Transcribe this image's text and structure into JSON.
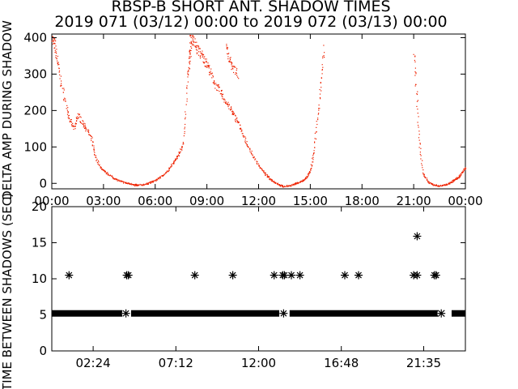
{
  "title_line1": "RBSP-B SHORT ANT. SHADOW TIMES",
  "title_line2": "2019 071 (03/12) 00:00 to 2019 072 (03/13) 00:00",
  "colors": {
    "red": "#ee2200",
    "black": "#000000"
  },
  "chart_data": [
    {
      "type": "scatter",
      "ylabel": "DELTA AMP DURING SHADOW",
      "ylim": [
        -15,
        410
      ],
      "xlim": [
        0,
        24
      ],
      "yticks": [
        0,
        100,
        200,
        300,
        400
      ],
      "xtick_labels": [
        "00:00",
        "03:00",
        "06:00",
        "09:00",
        "12:00",
        "15:00",
        "18:00",
        "21:00",
        "00:00"
      ],
      "series": [
        {
          "color": "#ee2200",
          "segments": [
            {
              "x": [
                0.0,
                0.15,
                0.3,
                0.5,
                0.8,
                1.0,
                1.3,
                1.5,
                1.8,
                2.0,
                2.3,
                2.5,
                2.8,
                3.0,
                3.3,
                3.6,
                3.9,
                4.2,
                4.5,
                4.8,
                5.0
              ],
              "y": [
                400,
                380,
                340,
                280,
                220,
                175,
                150,
                190,
                165,
                150,
                120,
                75,
                45,
                35,
                25,
                15,
                8,
                3,
                0,
                -2,
                -5
              ]
            },
            {
              "x": [
                4.8,
                5.2,
                5.5,
                5.8,
                6.1,
                6.4,
                6.7,
                7.0,
                7.2,
                7.4,
                7.6,
                7.8,
                8.0
              ],
              "y": [
                -5,
                -3,
                0,
                5,
                12,
                22,
                35,
                55,
                70,
                85,
                110,
                230,
                400
              ]
            },
            {
              "x": [
                8.0,
                8.2,
                8.4,
                8.6,
                8.8,
                9.0,
                9.2,
                9.5,
                9.8,
                10.0,
                10.3,
                10.5,
                10.8,
                11.0,
                11.3,
                11.6,
                12.0,
                12.3,
                12.6,
                12.9,
                13.2,
                13.4
              ],
              "y": [
                405,
                395,
                370,
                360,
                340,
                330,
                300,
                270,
                250,
                230,
                210,
                190,
                170,
                140,
                110,
                80,
                50,
                30,
                15,
                5,
                -3,
                -8
              ]
            },
            {
              "x": [
                13.4,
                13.8,
                14.1,
                14.4,
                14.6,
                14.8,
                15.0,
                15.2,
                15.4,
                15.6,
                15.8
              ],
              "y": [
                -8,
                -5,
                0,
                5,
                10,
                20,
                40,
                90,
                180,
                280,
                380
              ]
            },
            {
              "x": [
                21.0,
                21.15,
                21.3,
                21.5,
                21.8,
                22.1,
                22.4,
                22.7,
                23.0,
                23.2,
                23.4,
                23.6,
                23.8,
                24.0
              ],
              "y": [
                360,
                250,
                120,
                30,
                5,
                -2,
                -6,
                -5,
                0,
                5,
                12,
                18,
                32,
                45
              ]
            },
            {
              "x": [
                7.9,
                8.0,
                8.1
              ],
              "y": [
                300,
                350,
                395
              ]
            },
            {
              "x": [
                10.1,
                10.3,
                10.5,
                10.8
              ],
              "y": [
                380,
                340,
                320,
                300
              ]
            }
          ]
        }
      ]
    },
    {
      "type": "scatter",
      "ylabel": "TIME BETWEEN SHADOWS (SEC)",
      "ylim": [
        0,
        20
      ],
      "xlim": [
        0,
        24
      ],
      "yticks": [
        0,
        5,
        10,
        15,
        20
      ],
      "xtick_labels": [
        "02:24",
        "07:12",
        "12:00",
        "16:48",
        "21:35"
      ],
      "xticks": [
        2.4,
        7.2,
        12.0,
        16.8,
        21.58
      ],
      "baseline": {
        "y": 5.2,
        "ranges": [
          [
            0.0,
            4.1
          ],
          [
            4.6,
            13.2
          ],
          [
            13.8,
            22.8
          ],
          [
            23.2,
            24.0
          ]
        ]
      },
      "outliers": {
        "x": [
          1.0,
          4.35,
          4.45,
          8.3,
          10.5,
          12.9,
          13.4,
          13.5,
          13.9,
          14.4,
          17.0,
          17.8,
          21.0,
          21.2,
          22.2,
          22.3,
          4.3,
          13.45,
          22.6
        ],
        "y": [
          10.5,
          10.5,
          10.5,
          10.5,
          10.5,
          10.5,
          10.5,
          10.5,
          10.5,
          10.5,
          10.5,
          10.5,
          10.5,
          10.5,
          10.5,
          10.5,
          5.2,
          5.2,
          5.2
        ]
      },
      "outlier_high": {
        "x": 21.2,
        "y": 15.9
      }
    }
  ]
}
